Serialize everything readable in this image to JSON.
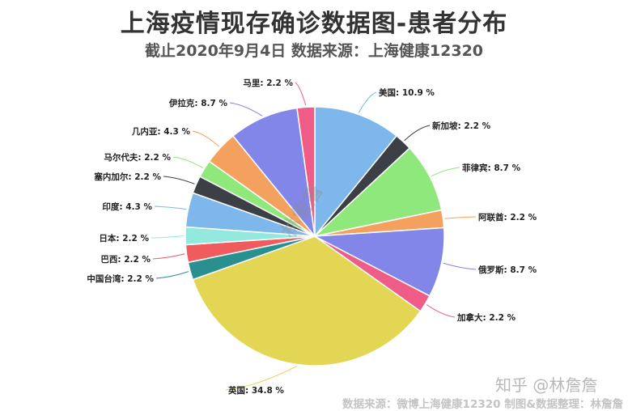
{
  "title": "上海疫情现存确诊数据图-患者分布",
  "subtitle": "截止2020年9月4日 数据来源：上海健康12320",
  "watermark_zhihu": "知乎 @林詹詹",
  "watermark_center": "林詹詹",
  "source_note": "数据来源：微博上海健康12320 制图&数据整理：林詹詹",
  "chart_data": {
    "type": "pie",
    "unit": "%",
    "slices": [
      {
        "label": "美国",
        "value": 10.9,
        "color": "#7eb7ec",
        "text": "美国: 10.9 %"
      },
      {
        "label": "新加坡",
        "value": 2.2,
        "color": "#3d3f46",
        "text": "新加坡: 2.2 %"
      },
      {
        "label": "菲律宾",
        "value": 8.7,
        "color": "#8fe87b",
        "text": "菲律宾: 8.7 %"
      },
      {
        "label": "阿联酋",
        "value": 2.2,
        "color": "#f4a15f",
        "text": "阿联酋: 2.2 %"
      },
      {
        "label": "俄罗斯",
        "value": 8.7,
        "color": "#8286e8",
        "text": "俄罗斯: 8.7 %"
      },
      {
        "label": "加拿大",
        "value": 2.2,
        "color": "#ef5c87",
        "text": "加拿大: 2.2 %"
      },
      {
        "label": "英国",
        "value": 34.8,
        "color": "#e3d655",
        "text": "英国: 34.8 %"
      },
      {
        "label": "中国台湾",
        "value": 2.2,
        "color": "#2a908f",
        "text": "中国台湾: 2.2 %"
      },
      {
        "label": "巴西",
        "value": 2.2,
        "color": "#f05b5e",
        "text": "巴西: 2.2 %"
      },
      {
        "label": "日本",
        "value": 2.2,
        "color": "#93e9dd",
        "text": "日本: 2.2 %"
      },
      {
        "label": "印度",
        "value": 4.3,
        "color": "#7eb7ec",
        "text": "印度: 4.3 %"
      },
      {
        "label": "塞内加尔",
        "value": 2.2,
        "color": "#3d3f46",
        "text": "塞内加尔: 2.2 %"
      },
      {
        "label": "马尔代夫",
        "value": 2.2,
        "color": "#8fe87b",
        "text": "马尔代夫: 2.2 %"
      },
      {
        "label": "几内亚",
        "value": 4.3,
        "color": "#f4a15f",
        "text": "几内亚: 4.3 %"
      },
      {
        "label": "伊拉克",
        "value": 8.7,
        "color": "#8286e8",
        "text": "伊拉克: 8.7 %"
      },
      {
        "label": "马里",
        "value": 2.2,
        "color": "#ef5c87",
        "text": "马里: 2.2 %"
      }
    ]
  }
}
